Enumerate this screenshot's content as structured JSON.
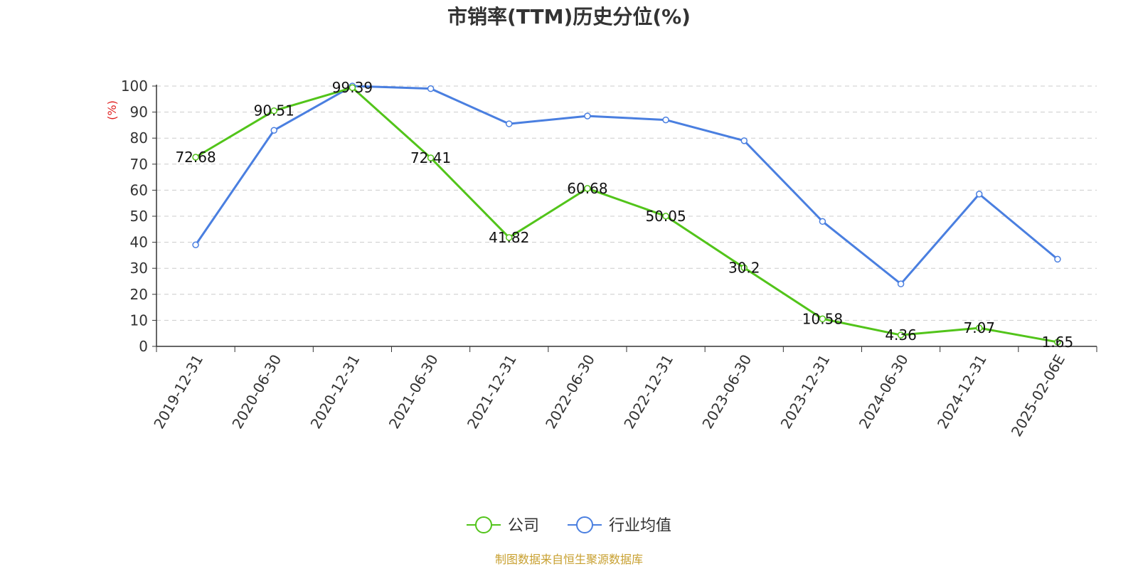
{
  "chart_data": {
    "type": "line",
    "title": "市销率(TTM)历史分位(%)",
    "ylabel": "(%)",
    "ylim": [
      0,
      100
    ],
    "yticks": [
      0,
      10,
      20,
      30,
      40,
      50,
      60,
      70,
      80,
      90,
      100
    ],
    "grid": true,
    "legend_position": "bottom-center",
    "categories": [
      "2019-12-31",
      "2020-06-30",
      "2020-12-31",
      "2021-06-30",
      "2021-12-31",
      "2022-06-30",
      "2022-12-31",
      "2023-06-30",
      "2023-12-31",
      "2024-06-30",
      "2024-12-31",
      "2025-02-06E"
    ],
    "series": [
      {
        "name": "公司",
        "color": "#52c41a",
        "show_labels": true,
        "values": [
          72.68,
          90.51,
          99.39,
          72.41,
          41.82,
          60.68,
          50.05,
          30.2,
          10.58,
          4.36,
          7.07,
          1.65
        ]
      },
      {
        "name": "行业均值",
        "color": "#4a7fe0",
        "show_labels": false,
        "values": [
          39,
          83,
          100,
          99,
          85.5,
          88.5,
          87,
          79,
          48,
          24,
          58.5,
          33.5
        ]
      }
    ],
    "unit_color": "#e02020"
  },
  "footer": {
    "source": "制图数据来自恒生聚源数据库",
    "source_color": "#c8a030"
  }
}
